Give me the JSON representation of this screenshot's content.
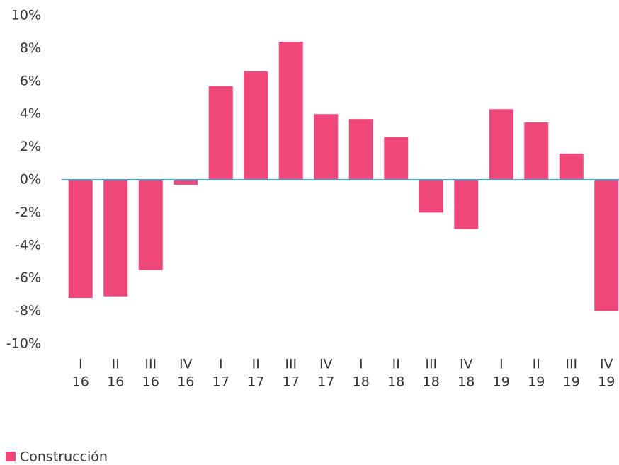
{
  "chart_data": {
    "type": "bar",
    "categories": [
      [
        "I",
        "16"
      ],
      [
        "II",
        "16"
      ],
      [
        "III",
        "16"
      ],
      [
        "IV",
        "16"
      ],
      [
        "I",
        "17"
      ],
      [
        "II",
        "17"
      ],
      [
        "III",
        "17"
      ],
      [
        "IV",
        "17"
      ],
      [
        "I",
        "18"
      ],
      [
        "II",
        "18"
      ],
      [
        "III",
        "18"
      ],
      [
        "IV",
        "18"
      ],
      [
        "I",
        "19"
      ],
      [
        "II",
        "19"
      ],
      [
        "III",
        "19"
      ],
      [
        "IV",
        "19"
      ]
    ],
    "series": [
      {
        "name": "Construcción",
        "color": "#f0477b",
        "values": [
          -7.2,
          -7.1,
          -5.5,
          -0.3,
          5.7,
          6.6,
          8.4,
          4.0,
          3.7,
          2.6,
          -2.0,
          -3.0,
          4.3,
          3.5,
          1.6,
          -8.0
        ]
      }
    ],
    "ylim": [
      -10,
      10
    ],
    "yticks": [
      {
        "value": -10,
        "label": "-10%"
      },
      {
        "value": -8,
        "label": "-8%"
      },
      {
        "value": -6,
        "label": "-6%"
      },
      {
        "value": -4,
        "label": "-4%"
      },
      {
        "value": -2,
        "label": "-2%"
      },
      {
        "value": 0,
        "label": "0%"
      },
      {
        "value": 2,
        "label": "2%"
      },
      {
        "value": 4,
        "label": "4%"
      },
      {
        "value": 6,
        "label": "6%"
      },
      {
        "value": 8,
        "label": "8%"
      },
      {
        "value": 10,
        "label": "10%"
      }
    ],
    "grid": false,
    "legend": "bottom-left"
  }
}
